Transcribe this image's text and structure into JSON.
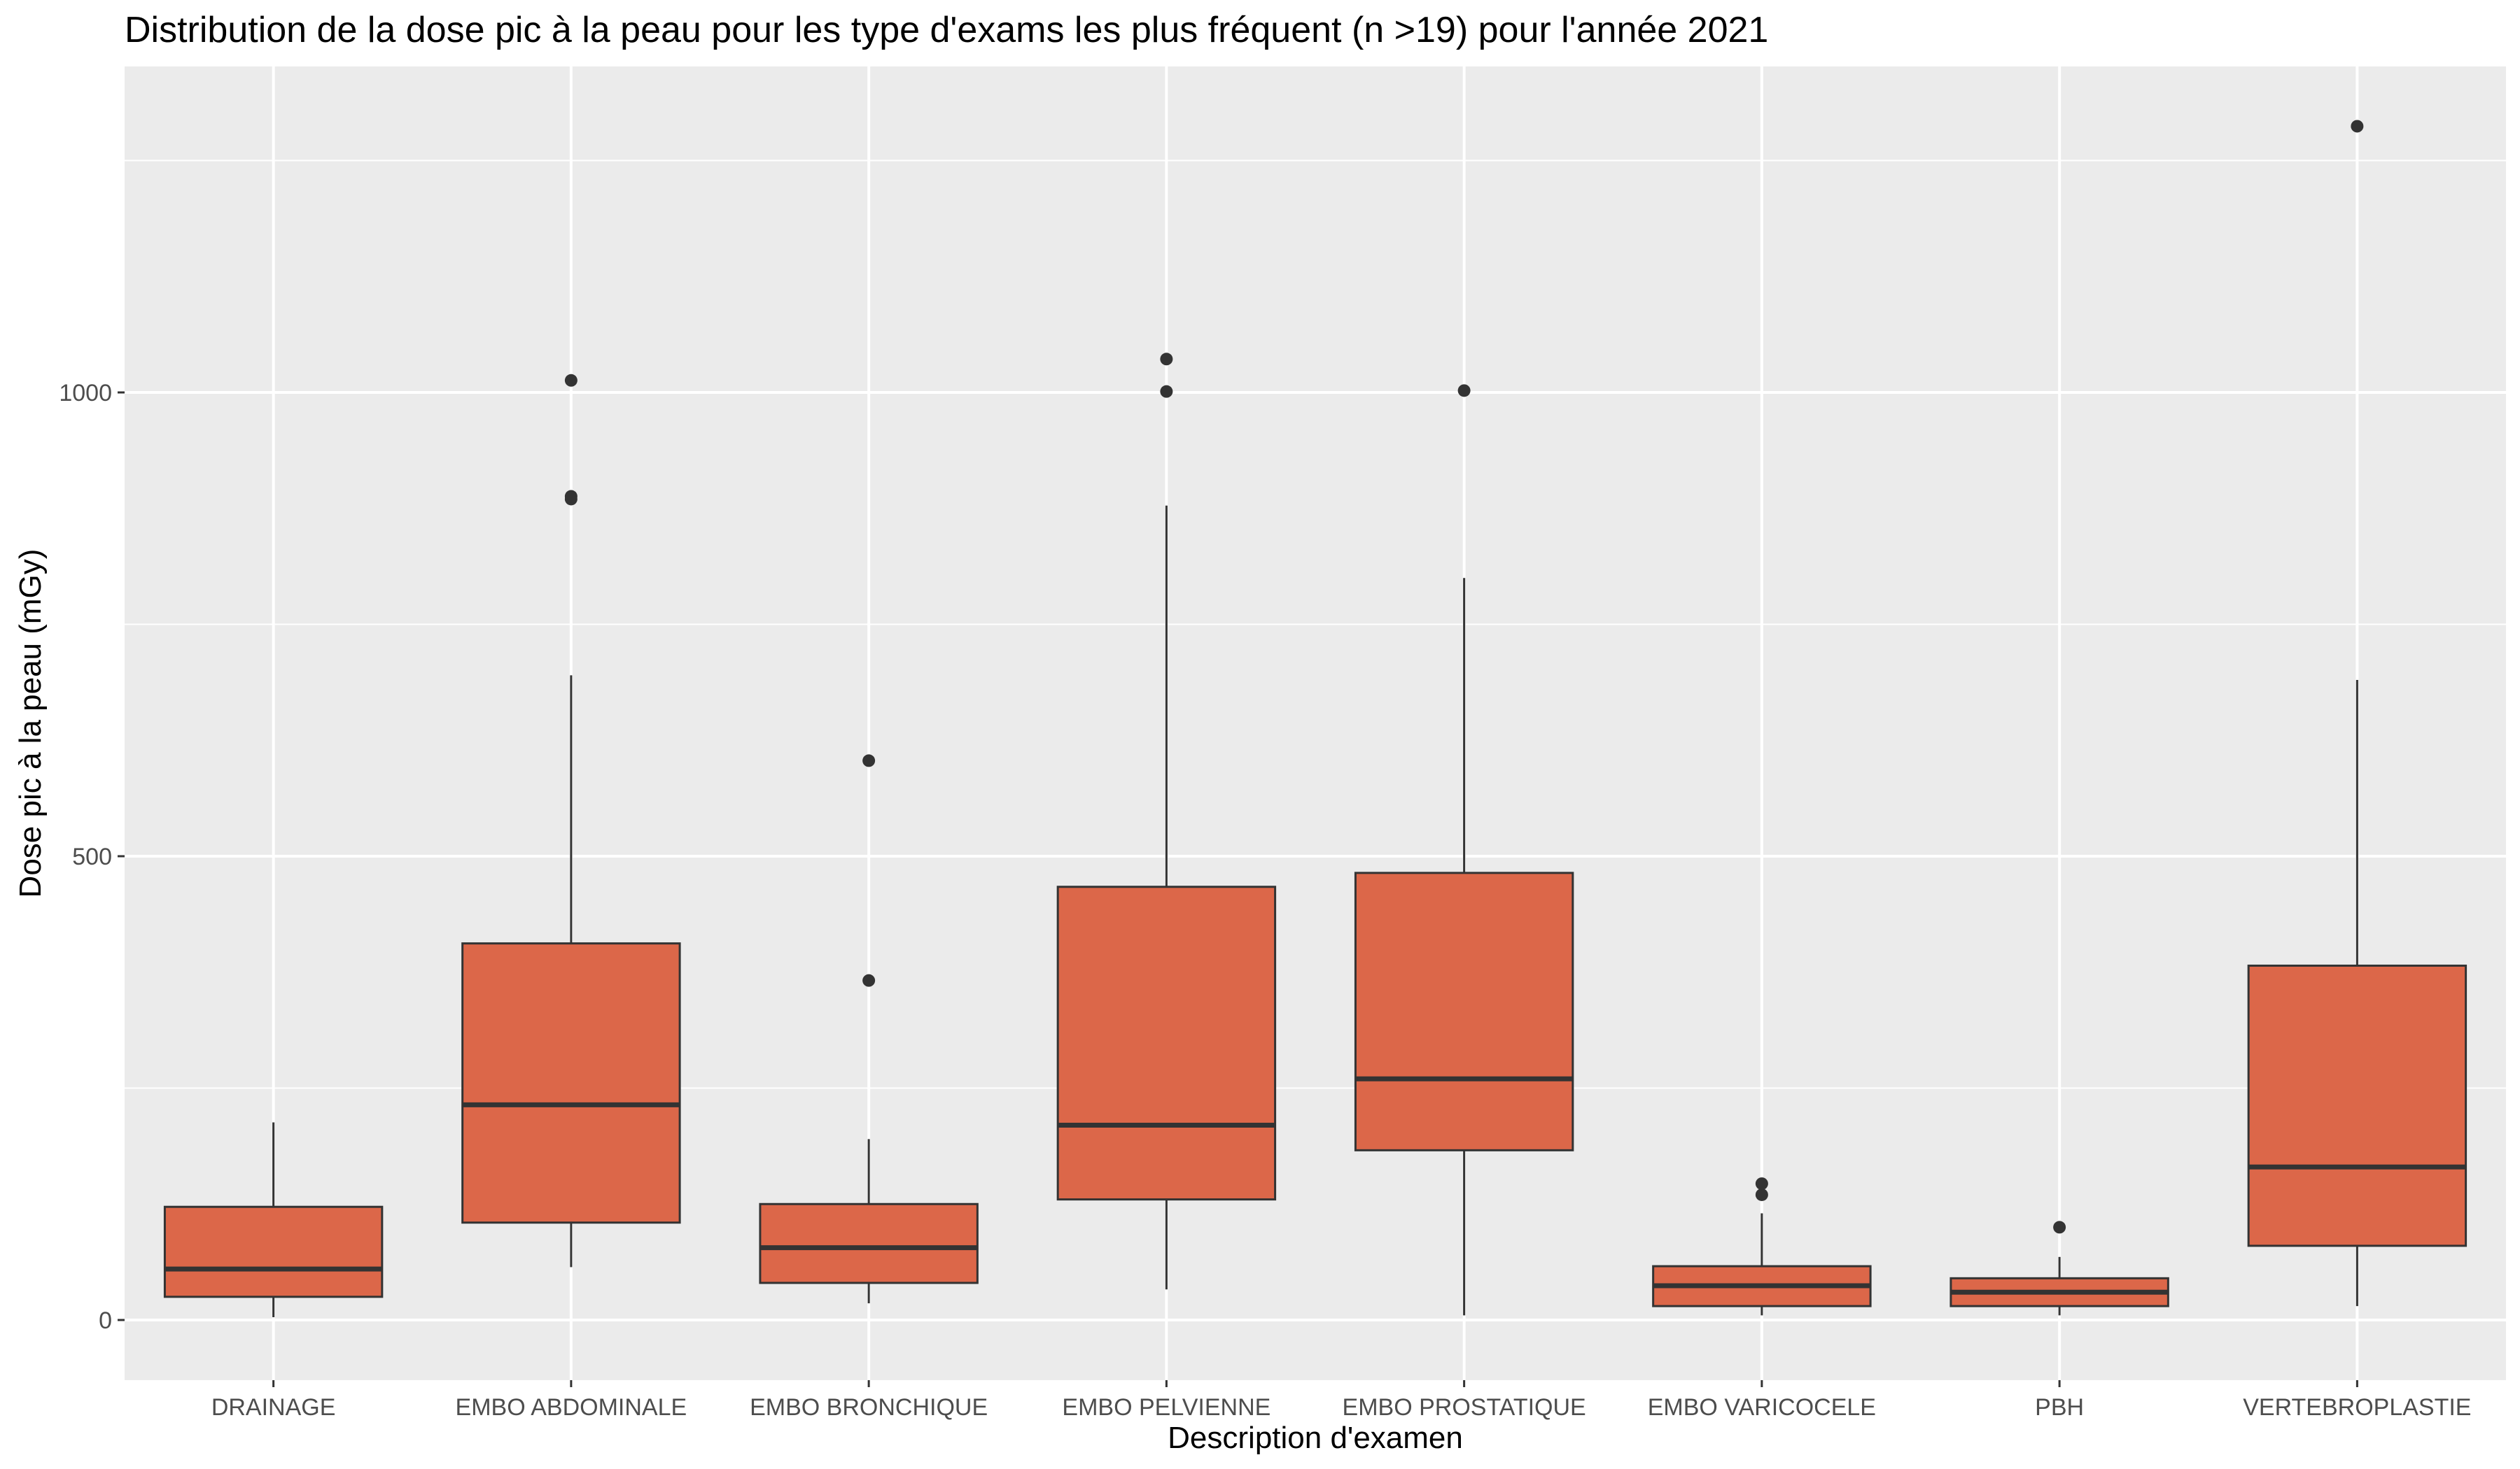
{
  "chart_data": {
    "type": "box",
    "title": "Distribution de la dose pic à la peau pour les type d'exams les plus fréquent (n >19) pour l'année 2021",
    "xlabel": "Description d'examen",
    "ylabel": "Dose pic à la peau (mGy)",
    "ylim": [
      -60,
      1290
    ],
    "yticks": [
      0,
      500,
      1000
    ],
    "grid": true,
    "legend": "none",
    "colors": {
      "box_fill": "#DC6749",
      "box_stroke": "#333333",
      "panel_bg": "#EBEBEB",
      "grid": "#FFFFFF"
    },
    "categories": [
      "DRAINAGE",
      "EMBO ABDOMINALE",
      "EMBO BRONCHIQUE",
      "EMBO PELVIENNE",
      "EMBO PROSTATIQUE",
      "EMBO VARICOCELE",
      "PBH",
      "VERTEBROPLASTIE"
    ],
    "boxes": [
      {
        "name": "DRAINAGE",
        "min": 3,
        "q1": 25,
        "median": 55,
        "q3": 122,
        "max": 213,
        "outliers": []
      },
      {
        "name": "EMBO ABDOMINALE",
        "min": 57,
        "q1": 105,
        "median": 232,
        "q3": 406,
        "max": 695,
        "outliers": [
          885,
          888,
          1013
        ]
      },
      {
        "name": "EMBO BRONCHIQUE",
        "min": 18,
        "q1": 40,
        "median": 78,
        "q3": 125,
        "max": 195,
        "outliers": [
          366,
          603
        ]
      },
      {
        "name": "EMBO PELVIENNE",
        "min": 33,
        "q1": 130,
        "median": 210,
        "q3": 467,
        "max": 878,
        "outliers": [
          1001,
          1036
        ]
      },
      {
        "name": "EMBO PROSTATIQUE",
        "min": 5,
        "q1": 183,
        "median": 260,
        "q3": 482,
        "max": 800,
        "outliers": [
          1002
        ]
      },
      {
        "name": "EMBO VARICOCELE",
        "min": 5,
        "q1": 15,
        "median": 37,
        "q3": 58,
        "max": 115,
        "outliers": [
          135,
          147
        ]
      },
      {
        "name": "PBH",
        "min": 5,
        "q1": 15,
        "median": 30,
        "q3": 45,
        "max": 68,
        "outliers": [
          100
        ]
      },
      {
        "name": "VERTEBROPLASTIE",
        "min": 15,
        "q1": 80,
        "median": 165,
        "q3": 382,
        "max": 690,
        "outliers": [
          1287
        ]
      }
    ]
  }
}
